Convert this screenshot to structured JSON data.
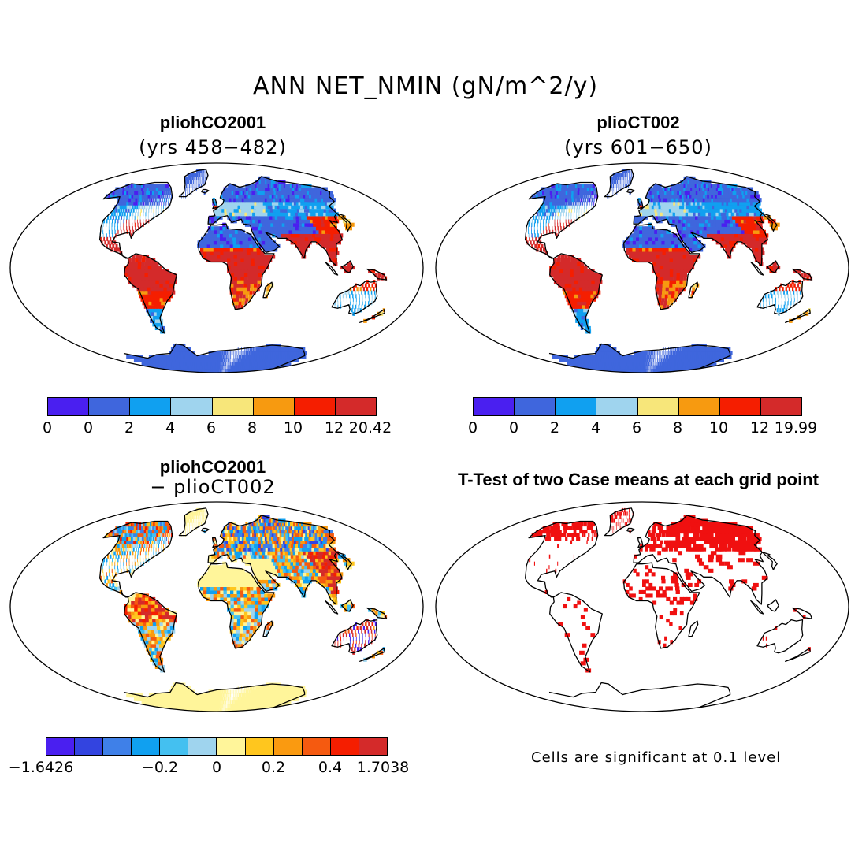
{
  "title": "ANN NET_NMIN (gN/m^2/y)",
  "panels": [
    {
      "title": "pliohCO2001",
      "subtitle": "(yrs 458−482)"
    },
    {
      "title": "plioCT002",
      "subtitle": "(yrs 601−650)"
    },
    {
      "title": "pliohCO2001",
      "subtitle": "− plioCT002"
    },
    {
      "title": "T-Test of two Case means at each grid point",
      "subtitle": ""
    }
  ],
  "colorbars": {
    "abs_colors": [
      "#4a1ff0",
      "#3f66dd",
      "#10a0f0",
      "#9fd4ee",
      "#f7e67a",
      "#f79a10",
      "#f51e00",
      "#d42a2a"
    ],
    "cb1_labels": [
      "0",
      "0",
      "2",
      "4",
      "6",
      "8",
      "10",
      "12",
      "20.42"
    ],
    "cb2_labels": [
      "0",
      "0",
      "2",
      "4",
      "6",
      "8",
      "10",
      "12",
      "19.99"
    ],
    "diff_colors": [
      "#4a1ff0",
      "#3344e0",
      "#3f80e8",
      "#10a0f0",
      "#44c0f0",
      "#9fd4ee",
      "#fff59a",
      "#ffc61e",
      "#fa9a10",
      "#f55a10",
      "#f51e00",
      "#d42a2a"
    ],
    "cb3_labels": [
      "−1.6426",
      "−0.2",
      "0",
      "0.2",
      "0.4",
      "1.7038"
    ]
  },
  "footnote": "Cells are significant at 0.1 level"
}
